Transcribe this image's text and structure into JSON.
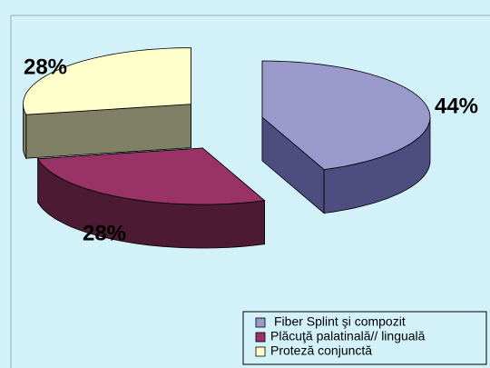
{
  "chart_data": {
    "type": "pie3d",
    "categories": [
      "Fiber Splint şi compozit",
      "Plăcuţă palatinală// linguală",
      "Proteză conjunctă"
    ],
    "values": [
      44,
      28,
      28
    ],
    "value_labels": [
      "44%",
      "28%",
      "28%"
    ],
    "colors": [
      "#9999cc",
      "#993366",
      "#ffffcc"
    ],
    "side_colors": [
      "#4d4d80",
      "#4d1a33",
      "#808066"
    ]
  }
}
